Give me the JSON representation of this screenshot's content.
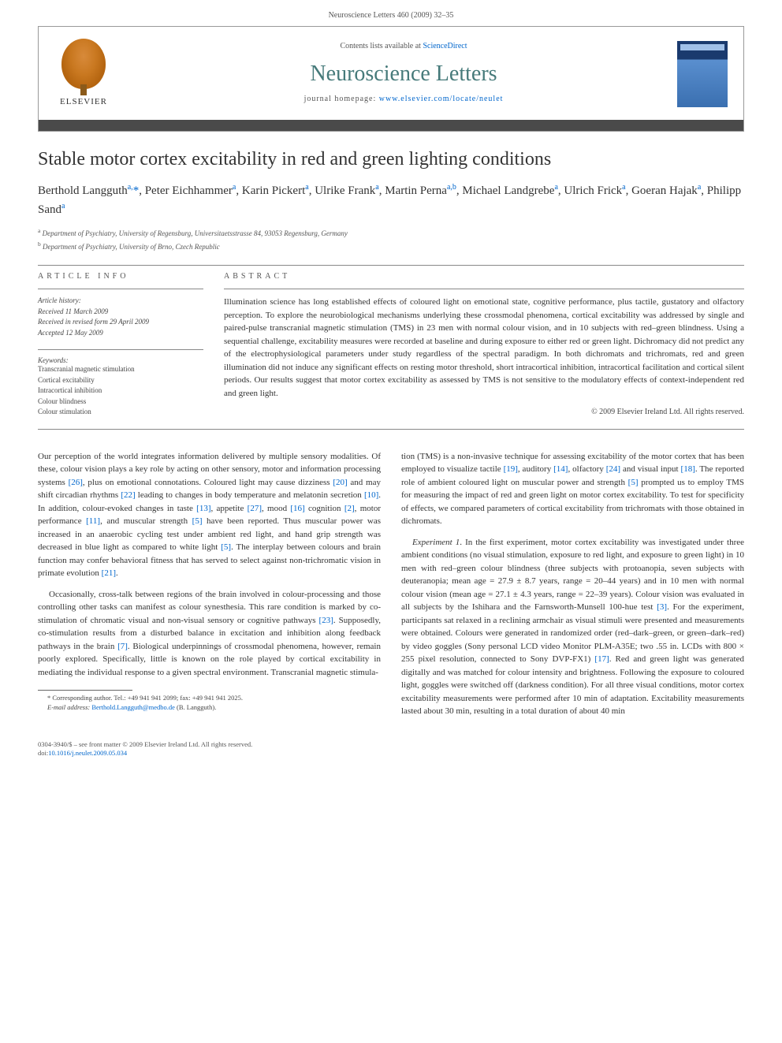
{
  "page_header": "Neuroscience Letters 460 (2009) 32–35",
  "banner": {
    "contents_prefix": "Contents lists available at ",
    "contents_link": "ScienceDirect",
    "journal_name": "Neuroscience Letters",
    "homepage_prefix": "journal homepage: ",
    "homepage_url": "www.elsevier.com/locate/neulet",
    "publisher": "ELSEVIER"
  },
  "article": {
    "title": "Stable motor cortex excitability in red and green lighting conditions",
    "authors_html": "Berthold Langguth<sup>a,</sup><span class='corr'>*</span>, Peter Eichhammer<sup>a</sup>, Karin Pickert<sup>a</sup>, Ulrike Frank<sup>a</sup>, Martin Perna<sup>a,b</sup>, Michael Landgrebe<sup>a</sup>, Ulrich Frick<sup>a</sup>, Goeran Hajak<sup>a</sup>, Philipp Sand<sup>a</sup>",
    "affiliations": [
      {
        "sup": "a",
        "text": "Department of Psychiatry, University of Regensburg, Universitaetsstrasse 84, 93053 Regensburg, Germany"
      },
      {
        "sup": "b",
        "text": "Department of Psychiatry, University of Brno, Czech Republic"
      }
    ],
    "info_label": "ARTICLE INFO",
    "abstract_label": "ABSTRACT",
    "history_label": "Article history:",
    "history": [
      "Received 11 March 2009",
      "Received in revised form 29 April 2009",
      "Accepted 12 May 2009"
    ],
    "keywords_label": "Keywords:",
    "keywords": [
      "Transcranial magnetic stimulation",
      "Cortical excitability",
      "Intracortical inhibition",
      "Colour blindness",
      "Colour stimulation"
    ],
    "abstract": "Illumination science has long established effects of coloured light on emotional state, cognitive performance, plus tactile, gustatory and olfactory perception. To explore the neurobiological mechanisms underlying these crossmodal phenomena, cortical excitability was addressed by single and paired-pulse transcranial magnetic stimulation (TMS) in 23 men with normal colour vision, and in 10 subjects with red–green blindness. Using a sequential challenge, excitability measures were recorded at baseline and during exposure to either red or green light. Dichromacy did not predict any of the electrophysiological parameters under study regardless of the spectral paradigm. In both dichromats and trichromats, red and green illumination did not induce any significant effects on resting motor threshold, short intracortical inhibition, intracortical facilitation and cortical silent periods. Our results suggest that motor cortex excitability as assessed by TMS is not sensitive to the modulatory effects of context-independent red and green light.",
    "copyright": "© 2009 Elsevier Ireland Ltd. All rights reserved."
  },
  "body": {
    "col1_p1": "Our perception of the world integrates information delivered by multiple sensory modalities. Of these, colour vision plays a key role by acting on other sensory, motor and information processing systems <span class='ref'>[26]</span>, plus on emotional connotations. Coloured light may cause dizziness <span class='ref'>[20]</span> and may shift circadian rhythms <span class='ref'>[22]</span> leading to changes in body temperature and melatonin secretion <span class='ref'>[10]</span>. In addition, colour-evoked changes in taste <span class='ref'>[13]</span>, appetite <span class='ref'>[27]</span>, mood <span class='ref'>[16]</span> cognition <span class='ref'>[2]</span>, motor performance <span class='ref'>[11]</span>, and muscular strength <span class='ref'>[5]</span> have been reported. Thus muscular power was increased in an anaerobic cycling test under ambient red light, and hand grip strength was decreased in blue light as compared to white light <span class='ref'>[5]</span>. The interplay between colours and brain function may confer behavioral fitness that has served to select against non-trichromatic vision in primate evolution <span class='ref'>[21]</span>.",
    "col1_p2": "Occasionally, cross-talk between regions of the brain involved in colour-processing and those controlling other tasks can manifest as colour synesthesia. This rare condition is marked by co-stimulation of chromatic visual and non-visual sensory or cognitive pathways <span class='ref'>[23]</span>. Supposedly, co-stimulation results from a disturbed balance in excitation and inhibition along feedback pathways in the brain <span class='ref'>[7]</span>. Biological underpinnings of crossmodal phenomena, however, remain poorly explored. Specifically, little is known on the role played by cortical excitability in mediating the individual response to a given spectral environment. Transcranial magnetic stimula-",
    "col2_p1": "tion (TMS) is a non-invasive technique for assessing excitability of the motor cortex that has been employed to visualize tactile <span class='ref'>[19]</span>, auditory <span class='ref'>[14]</span>, olfactory <span class='ref'>[24]</span> and visual input <span class='ref'>[18]</span>. The reported role of ambient coloured light on muscular power and strength <span class='ref'>[5]</span> prompted us to employ TMS for measuring the impact of red and green light on motor cortex excitability. To test for specificity of effects, we compared parameters of cortical excitability from trichromats with those obtained in dichromats.",
    "col2_p2": "<em>Experiment 1</em>. In the first experiment, motor cortex excitability was investigated under three ambient conditions (no visual stimulation, exposure to red light, and exposure to green light) in 10 men with red–green colour blindness (three subjects with protoanopia, seven subjects with deuteranopia; mean age = 27.9 ± 8.7 years, range = 20–44 years) and in 10 men with normal colour vision (mean age = 27.1 ± 4.3 years, range = 22–39 years). Colour vision was evaluated in all subjects by the Ishihara and the Farnsworth-Munsell 100-hue test <span class='ref'>[3]</span>. For the experiment, participants sat relaxed in a reclining armchair as visual stimuli were presented and measurements were obtained. Colours were generated in randomized order (red–dark–green, or green–dark–red) by video goggles (Sony personal LCD video Monitor PLM-A35E; two .55 in. LCDs with 800 × 255 pixel resolution, connected to Sony DVP-FX1) <span class='ref'>[17]</span>. Red and green light was generated digitally and was matched for colour intensity and brightness. Following the exposure to coloured light, goggles were switched off (darkness condition). For all three visual conditions, motor cortex excitability measurements were performed after 10 min of adaptation. Excitability measurements lasted about 30 min, resulting in a total duration of about 40 min"
  },
  "footnote": {
    "line1": "* Corresponding author. Tel.: +49 941 941 2099; fax: +49 941 941 2025.",
    "line2_label": "E-mail address: ",
    "line2_email": "Berthold.Langguth@medbo.de",
    "line2_suffix": " (B. Langguth)."
  },
  "footer": {
    "line1": "0304-3940/$ – see front matter © 2009 Elsevier Ireland Ltd. All rights reserved.",
    "doi_prefix": "doi:",
    "doi": "10.1016/j.neulet.2009.05.034"
  },
  "colors": {
    "link": "#0066cc",
    "journal_title": "#467a7a",
    "rule": "#888888",
    "text": "#333333",
    "banner_bar": "#4a4a4a"
  }
}
